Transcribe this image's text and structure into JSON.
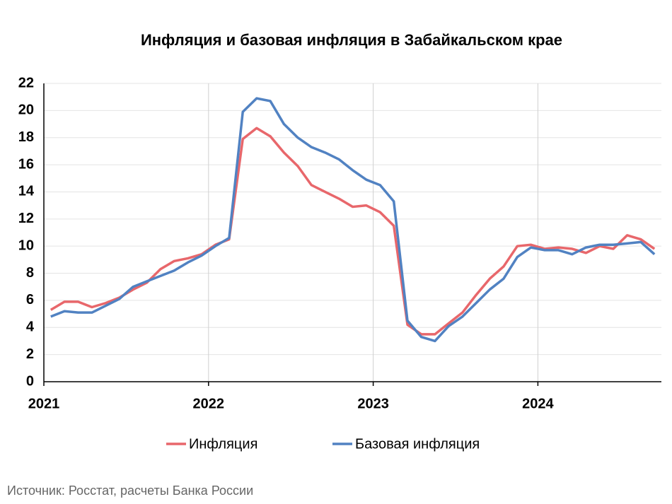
{
  "chart_data": {
    "type": "line",
    "title": "Инфляция и базовая инфляция в Забайкальском крае",
    "source": "Источник: Росстат, расчеты Банка России",
    "x": [
      2021.042,
      2021.125,
      2021.208,
      2021.292,
      2021.375,
      2021.458,
      2021.542,
      2021.625,
      2021.708,
      2021.792,
      2021.875,
      2021.958,
      2022.042,
      2022.125,
      2022.208,
      2022.292,
      2022.375,
      2022.458,
      2022.542,
      2022.625,
      2022.708,
      2022.792,
      2022.875,
      2022.958,
      2023.042,
      2023.125,
      2023.208,
      2023.292,
      2023.375,
      2023.458,
      2023.542,
      2023.625,
      2023.708,
      2023.792,
      2023.875,
      2023.958,
      2024.042,
      2024.125,
      2024.208,
      2024.292,
      2024.375,
      2024.458,
      2024.542,
      2024.625,
      2024.708
    ],
    "series": [
      {
        "name": "Инфляция",
        "color": "#e8676b",
        "values": [
          5.3,
          5.9,
          5.9,
          5.5,
          5.8,
          6.2,
          6.8,
          7.3,
          8.3,
          8.9,
          9.1,
          9.4,
          10.1,
          10.5,
          17.9,
          18.7,
          18.1,
          16.9,
          15.9,
          14.5,
          14.0,
          13.5,
          12.9,
          13.0,
          12.5,
          11.5,
          4.2,
          3.5,
          3.5,
          4.3,
          5.1,
          6.4,
          7.6,
          8.5,
          10.0,
          10.1,
          9.8,
          9.9,
          9.8,
          9.5,
          10.0,
          9.8,
          10.8,
          10.5,
          9.8
        ]
      },
      {
        "name": "Базовая инфляция",
        "color": "#5182c2",
        "values": [
          4.8,
          5.2,
          5.1,
          5.1,
          5.6,
          6.1,
          7.0,
          7.4,
          7.8,
          8.2,
          8.8,
          9.3,
          10.0,
          10.6,
          19.9,
          20.9,
          20.7,
          19.0,
          18.0,
          17.3,
          16.9,
          16.4,
          15.6,
          14.9,
          14.5,
          13.3,
          4.5,
          3.3,
          3.0,
          4.1,
          4.8,
          5.8,
          6.8,
          7.6,
          9.2,
          9.9,
          9.7,
          9.7,
          9.4,
          9.9,
          10.1,
          10.1,
          10.2,
          10.3,
          9.4
        ]
      }
    ],
    "xlim": [
      2021,
      2024.75
    ],
    "xticks": [
      2021,
      2022,
      2023,
      2024
    ],
    "ylim": [
      0,
      22
    ],
    "yticks": [
      0,
      2,
      4,
      6,
      8,
      10,
      12,
      14,
      16,
      18,
      20,
      22
    ],
    "grid": true
  }
}
